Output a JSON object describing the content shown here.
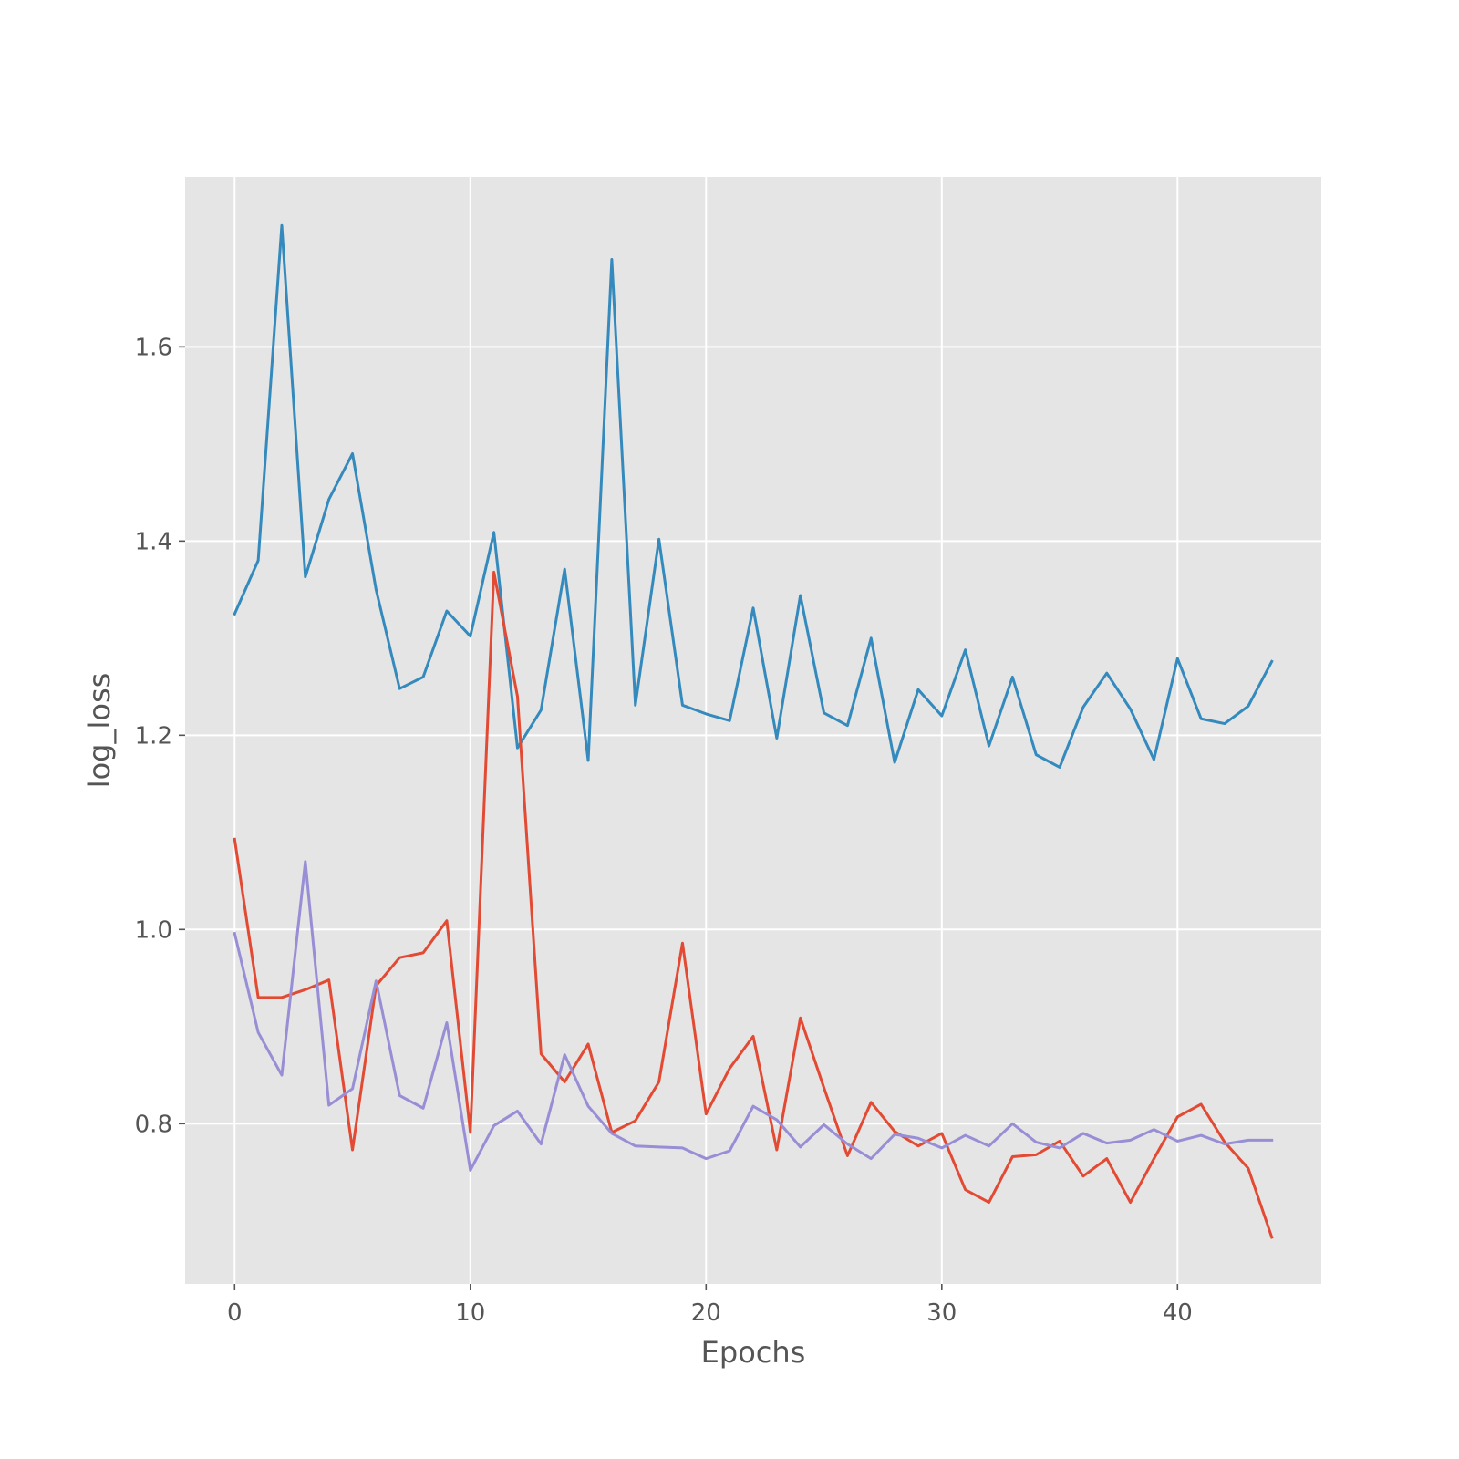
{
  "chart_data": {
    "type": "line",
    "title": "",
    "xlabel": "Epochs",
    "ylabel": "log_loss",
    "xlim": [
      -2.1,
      46.1
    ],
    "ylim": [
      0.635,
      1.775
    ],
    "x_ticks": [
      0,
      10,
      20,
      30,
      40
    ],
    "y_ticks": [
      0.8,
      1.0,
      1.2,
      1.4,
      1.6
    ],
    "x_tick_labels": [
      "0",
      "10",
      "20",
      "30",
      "40"
    ],
    "y_tick_labels": [
      "0.8",
      "1.0",
      "1.2",
      "1.4",
      "1.6"
    ],
    "grid": true,
    "style": "ggplot",
    "background": "#e5e5e5",
    "x": [
      0,
      1,
      2,
      3,
      4,
      5,
      6,
      7,
      8,
      9,
      10,
      11,
      12,
      13,
      14,
      15,
      16,
      17,
      18,
      19,
      20,
      21,
      22,
      23,
      24,
      25,
      26,
      27,
      28,
      29,
      30,
      31,
      32,
      33,
      34,
      35,
      36,
      37,
      38,
      39,
      40,
      41,
      42,
      43,
      44
    ],
    "series": [
      {
        "color": "#348abd",
        "values": [
          1.325,
          1.38,
          1.725,
          1.363,
          1.443,
          1.49,
          1.35,
          1.248,
          1.26,
          1.328,
          1.302,
          1.409,
          1.187,
          1.226,
          1.371,
          1.174,
          1.69,
          1.231,
          1.402,
          1.231,
          1.222,
          1.215,
          1.331,
          1.197,
          1.344,
          1.223,
          1.21,
          1.3,
          1.172,
          1.247,
          1.22,
          1.288,
          1.189,
          1.26,
          1.18,
          1.167,
          1.229,
          1.264,
          1.227,
          1.175,
          1.279,
          1.217,
          1.212,
          1.23,
          1.276
        ]
      },
      {
        "color": "#e24a33",
        "values": [
          1.093,
          0.93,
          0.93,
          0.938,
          0.948,
          0.773,
          0.942,
          0.971,
          0.976,
          1.009,
          0.791,
          1.368,
          1.24,
          0.872,
          0.843,
          0.882,
          0.791,
          0.803,
          0.843,
          0.986,
          0.81,
          0.857,
          0.89,
          0.773,
          0.909,
          0.837,
          0.767,
          0.822,
          0.792,
          0.777,
          0.79,
          0.732,
          0.719,
          0.766,
          0.768,
          0.782,
          0.746,
          0.764,
          0.719,
          0.764,
          0.807,
          0.82,
          0.781,
          0.754,
          0.683
        ]
      },
      {
        "color": "#988ed5",
        "values": [
          0.996,
          0.894,
          0.85,
          1.07,
          0.819,
          0.836,
          0.947,
          0.829,
          0.816,
          0.904,
          0.752,
          0.798,
          0.813,
          0.779,
          0.871,
          0.818,
          0.79,
          0.777,
          0.776,
          0.775,
          0.764,
          0.772,
          0.818,
          0.804,
          0.776,
          0.799,
          0.779,
          0.764,
          0.789,
          0.785,
          0.775,
          0.788,
          0.777,
          0.8,
          0.781,
          0.775,
          0.79,
          0.78,
          0.783,
          0.794,
          0.782,
          0.788,
          0.779,
          0.783,
          0.783
        ]
      }
    ]
  }
}
